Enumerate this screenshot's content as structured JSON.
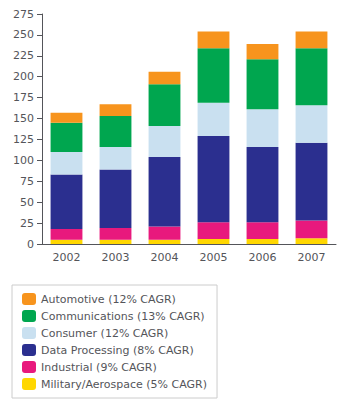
{
  "chart_data": {
    "type": "bar",
    "stacked": true,
    "categories": [
      "2002",
      "2003",
      "2004",
      "2005",
      "2006",
      "2007"
    ],
    "series": [
      {
        "name": "Military/Aerospace (5% CAGR)",
        "color": "#FFD700",
        "values": [
          5,
          5,
          5,
          6,
          6,
          7
        ]
      },
      {
        "name": "Industrial (9% CAGR)",
        "color": "#E8197D",
        "values": [
          13,
          14,
          16,
          20,
          20,
          21
        ]
      },
      {
        "name": "Data Processing (8% CAGR)",
        "color": "#2B2F8F",
        "values": [
          65,
          70,
          83,
          103,
          90,
          93
        ]
      },
      {
        "name": "Consumer (12% CAGR)",
        "color": "#C9E0F0",
        "values": [
          27,
          27,
          37,
          40,
          45,
          45
        ]
      },
      {
        "name": "Communications (13% CAGR)",
        "color": "#00A64F",
        "values": [
          35,
          37,
          50,
          65,
          60,
          68
        ]
      },
      {
        "name": "Automotive (12% CAGR)",
        "color": "#F7941D",
        "values": [
          12,
          14,
          15,
          20,
          18,
          20
        ]
      }
    ],
    "ylim": [
      0,
      275
    ],
    "yticks": [
      0,
      25,
      50,
      75,
      100,
      125,
      150,
      175,
      200,
      225,
      250,
      275
    ],
    "grid": false,
    "legend": "bottom"
  }
}
